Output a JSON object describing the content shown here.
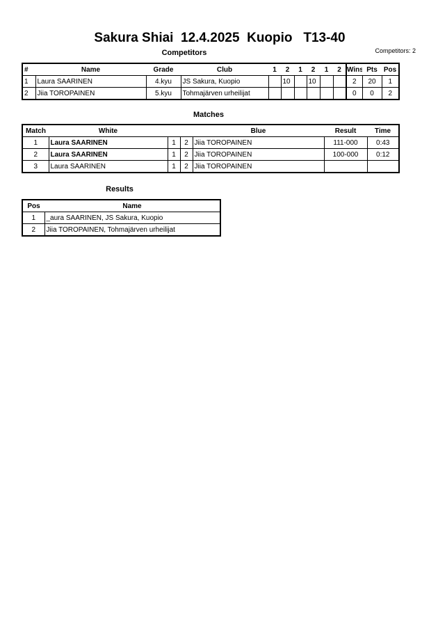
{
  "title": "Sakura Shiai  12.4.2025  Kuopio   T13-40",
  "competitors": {
    "heading": "Competitors",
    "count_label": "Competitors: 2",
    "headers": {
      "num": "#",
      "name": "Name",
      "grade": "Grade",
      "club": "Club",
      "s": [
        "1",
        "2",
        "1",
        "2",
        "1",
        "2"
      ],
      "wins": "Wins",
      "pts": "Pts",
      "pos": "Pos"
    },
    "rows": [
      {
        "num": "1",
        "name": "Laura SAARINEN",
        "grade": "4.kyu",
        "club": "JS Sakura, Kuopio",
        "s": [
          "",
          "10",
          "",
          "10",
          "",
          ""
        ],
        "wins": "2",
        "pts": "20",
        "pos": "1"
      },
      {
        "num": "2",
        "name": "Jiia TOROPAINEN",
        "grade": "5.kyu",
        "club": "Tohmajärven urheilijat",
        "s": [
          "",
          "",
          "",
          "",
          "",
          ""
        ],
        "wins": "0",
        "pts": "0",
        "pos": "2"
      }
    ]
  },
  "matches": {
    "heading": "Matches",
    "headers": {
      "match": "Match",
      "white": "White",
      "blue": "Blue",
      "result": "Result",
      "time": "Time"
    },
    "rows": [
      {
        "match": "1",
        "white": "Laura SAARINEN",
        "w": "1",
        "b": "2",
        "blue": "Jiia TOROPAINEN",
        "result": "111-000",
        "time": "0:43"
      },
      {
        "match": "2",
        "white": "Laura SAARINEN",
        "w": "1",
        "b": "2",
        "blue": "Jiia TOROPAINEN",
        "result": "100-000",
        "time": "0:12"
      },
      {
        "match": "3",
        "white": "Laura SAARINEN",
        "w": "1",
        "b": "2",
        "blue": "Jiia TOROPAINEN",
        "result": "",
        "time": ""
      }
    ]
  },
  "results": {
    "heading": "Results",
    "headers": {
      "pos": "Pos",
      "name": "Name"
    },
    "rows": [
      {
        "pos": "1",
        "name": "_aura SAARINEN, JS Sakura, Kuopio"
      },
      {
        "pos": "2",
        "name": "Jiia TOROPAINEN, Tohmajärven urheilijat"
      }
    ]
  }
}
